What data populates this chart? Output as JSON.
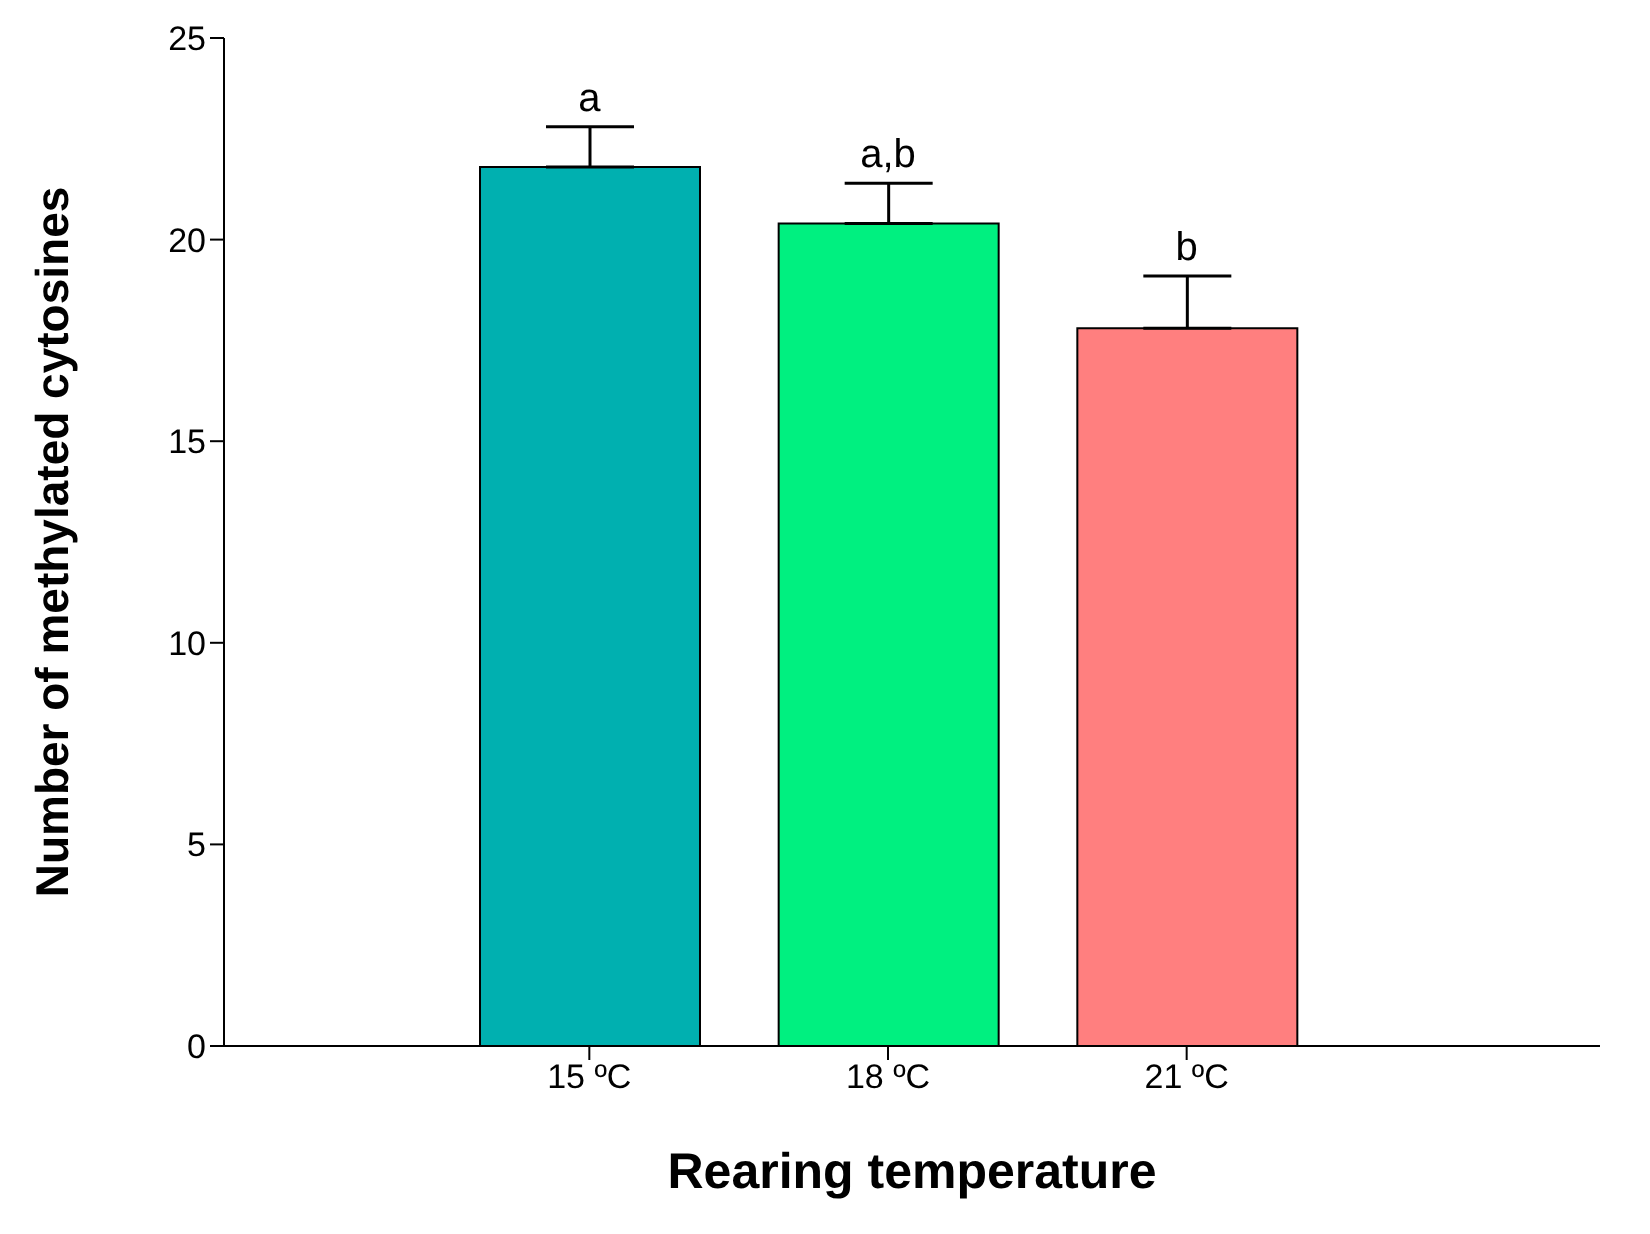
{
  "chart_data": {
    "type": "bar",
    "xlabel": "Rearing temperature",
    "ylabel": "Number of methylated cytosines",
    "categories": [
      "15 ºC",
      "18 ºC",
      "21 ºC"
    ],
    "values": [
      21.8,
      20.4,
      17.8
    ],
    "colors": [
      "#00b0b0",
      "#00f080",
      "#ff7f7f"
    ],
    "errors": [
      [
        21.8,
        22.8
      ],
      [
        20.4,
        21.4
      ],
      [
        17.8,
        19.1
      ]
    ],
    "ylim": [
      0,
      25
    ],
    "yticks": [
      0,
      5,
      10,
      15,
      20,
      25
    ],
    "grid": false,
    "legend": false,
    "annotations": [
      {
        "text": "a",
        "x": "15 ºC",
        "y": 22.8
      },
      {
        "text": "a,b",
        "x": "18 ºC",
        "y": 21.4
      },
      {
        "text": "b",
        "x": "21 ºC",
        "y": 19.1
      }
    ]
  }
}
